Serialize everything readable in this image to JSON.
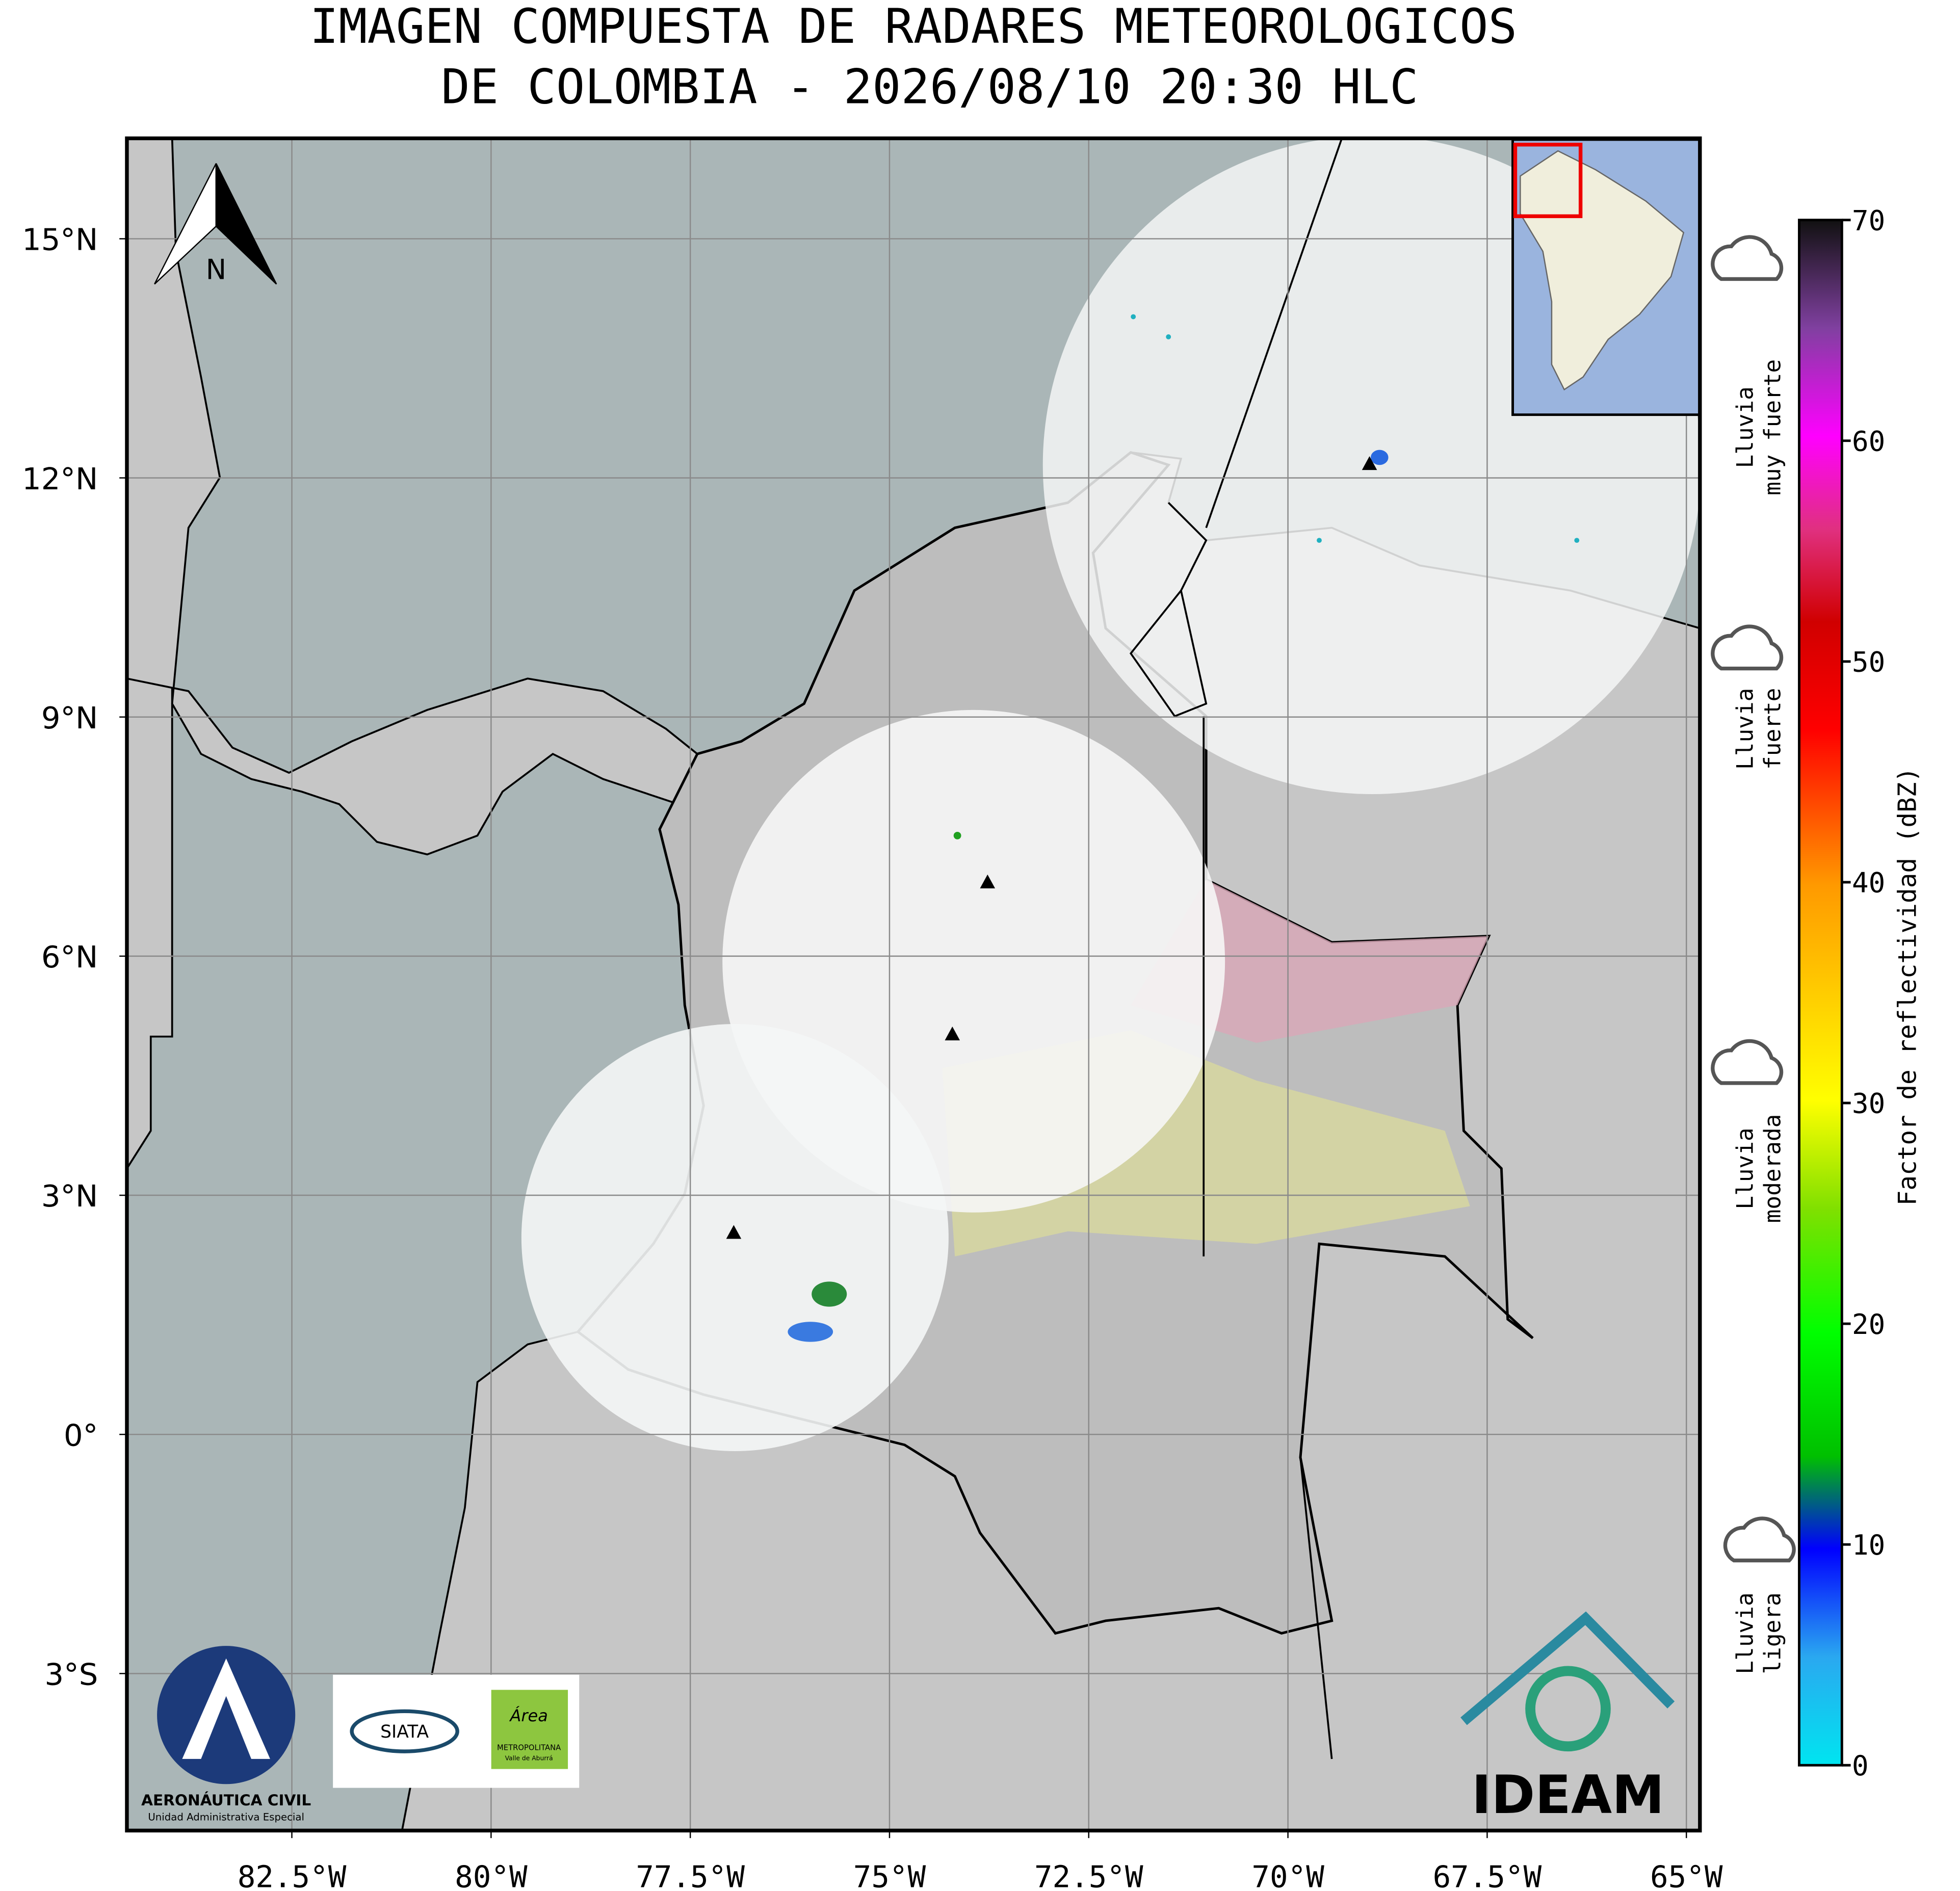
{
  "title_lines": [
    "IMAGEN COMPUESTA DE RADARES METEOROLOGICOS",
    "DE COLOMBIA - 2026/08/10 20:30 HLC"
  ],
  "map": {
    "xlim": [
      -84.57,
      -64.83
    ],
    "ylim": [
      -4.97,
      16.26
    ],
    "xticks": [
      {
        "value": -82.5,
        "label": "82.5°W"
      },
      {
        "value": -80,
        "label": "80°W"
      },
      {
        "value": -77.5,
        "label": "77.5°W"
      },
      {
        "value": -75,
        "label": "75°W"
      },
      {
        "value": -72.5,
        "label": "72.5°W"
      },
      {
        "value": -70,
        "label": "70°W"
      },
      {
        "value": -67.5,
        "label": "67.5°W"
      },
      {
        "value": -65,
        "label": "65°W"
      }
    ],
    "yticks": [
      {
        "value": 15,
        "label": "15°N"
      },
      {
        "value": 12,
        "label": "12°N"
      },
      {
        "value": 9,
        "label": "9°N"
      },
      {
        "value": 6,
        "label": "6°N"
      },
      {
        "value": 3,
        "label": "3°N"
      },
      {
        "value": 0,
        "label": "0°"
      },
      {
        "value": -3,
        "label": "3°S"
      }
    ],
    "grid": true
  },
  "north_label": "N",
  "colorbar": {
    "label": "Factor de reflectividad (dBZ)",
    "lim": [
      0,
      70
    ],
    "ticks": [
      0,
      10,
      20,
      30,
      40,
      50,
      60,
      70
    ]
  },
  "rain_legend": [
    [
      "Lluvia",
      "muy fuerte"
    ],
    [
      "Lluvia",
      "fuerte"
    ],
    [
      "Lluvia",
      "moderada"
    ],
    [
      "Lluvia",
      "ligera"
    ]
  ],
  "logos": {
    "aerocivil": "AERONÁUTICA CIVIL",
    "aerocivil_sub": "Unidad Administrativa Especial",
    "siata": "SIATA",
    "area": "Área",
    "area_sub1": "METROPOLITANA",
    "area_sub2": "Valle de Aburrá",
    "ideam": "IDEAM"
  }
}
